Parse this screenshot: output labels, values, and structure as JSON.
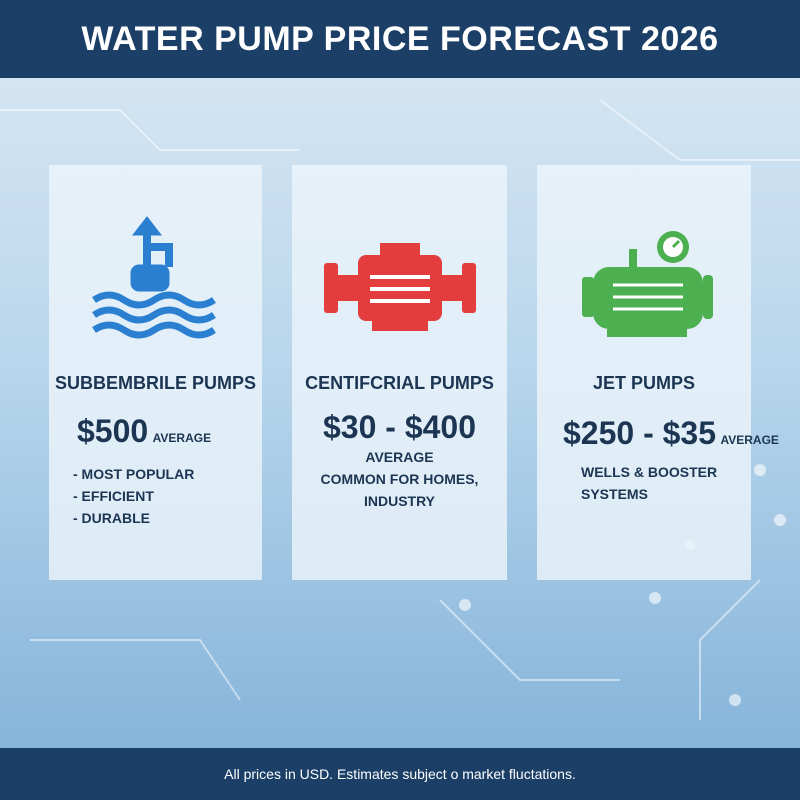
{
  "header": {
    "title": "WATER PUMP PRICE FORECAST 2026"
  },
  "cards": [
    {
      "name": "SUBBEMBRILE PUMPS",
      "price": "$500",
      "price_note": "AVERAGE",
      "details": [
        "- MOST POPULAR",
        "- EFFICIENT",
        "- DURABLE"
      ]
    },
    {
      "name": "CENTIFCRIAL PUMPS",
      "price": "$30 - $400",
      "price_note": "AVERAGE",
      "details": [
        "COMMON FOR HOMES,",
        "INDUSTRY"
      ]
    },
    {
      "name": "JET PUMPS",
      "price": "$250 - $35",
      "price_note": "AVERAGE",
      "details": [
        "WELLS & BOOSTER",
        "SYSTEMS"
      ]
    }
  ],
  "footer": {
    "note": "All prices in USD. Estimates subject o market fluctations."
  }
}
